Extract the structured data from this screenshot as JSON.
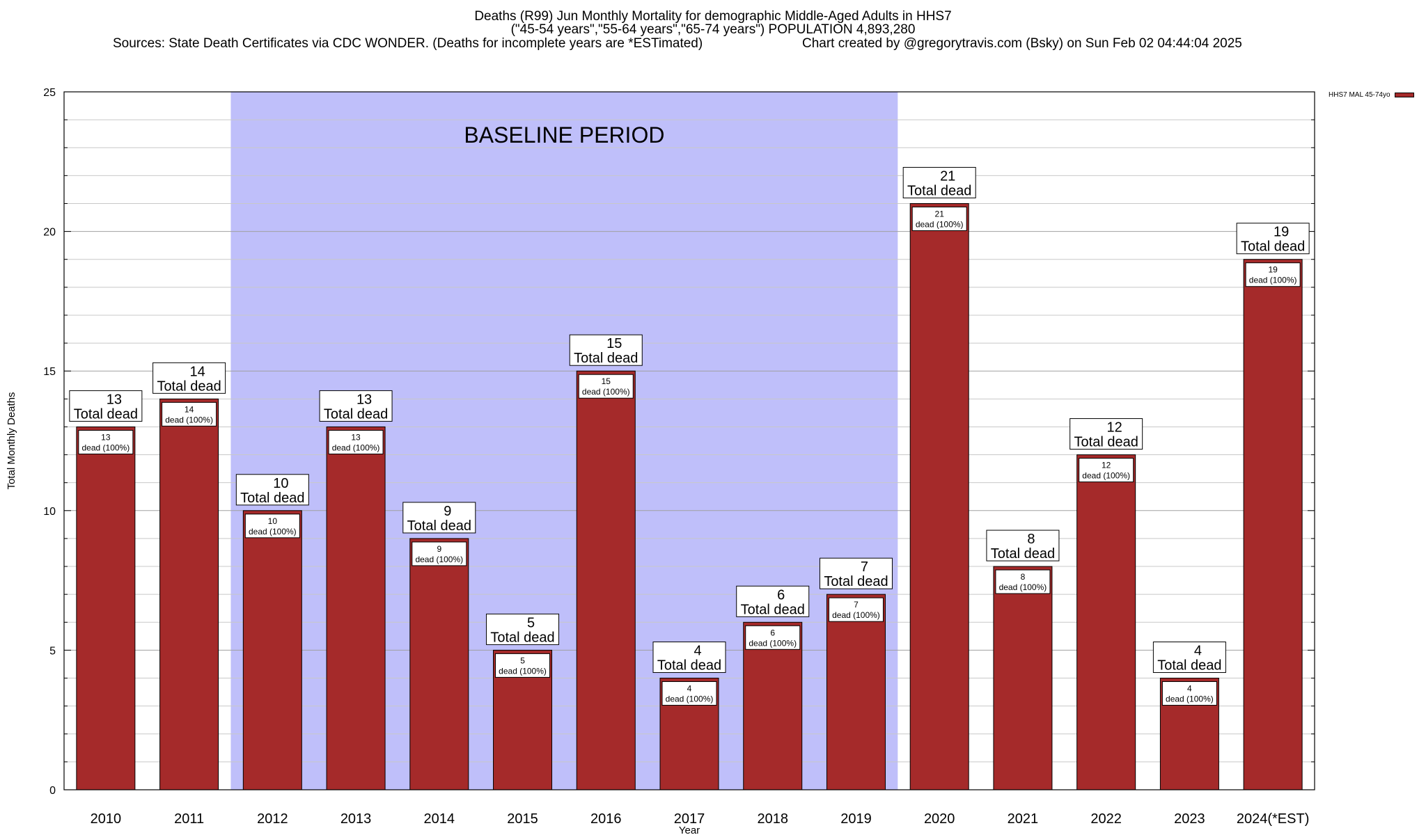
{
  "title": {
    "line1": "Deaths (R99) Jun Monthly Mortality for demographic Middle-Aged Adults in HHS7",
    "line2": "(\"45-54 years\",\"55-64 years\",\"65-74 years\") POPULATION 4,893,280",
    "sources": "Sources: State Death Certificates via CDC WONDER. (Deaths for incomplete years are *ESTimated)",
    "credit": "Chart created by @gregorytravis.com (Bsky) on Sun Feb 02 04:44:04 2025"
  },
  "legend": {
    "label": "HHS7 MAL 45-74yo"
  },
  "chart_data": {
    "type": "bar",
    "categories": [
      "2010",
      "2011",
      "2012",
      "2013",
      "2014",
      "2015",
      "2016",
      "2017",
      "2018",
      "2019",
      "2020",
      "2021",
      "2022",
      "2023",
      "2024(*EST)"
    ],
    "series": [
      {
        "name": "HHS7 MAL 45-74yo",
        "values": [
          13,
          14,
          10,
          13,
          9,
          5,
          15,
          4,
          6,
          7,
          21,
          8,
          12,
          4,
          19
        ]
      }
    ],
    "xlabel": "Year",
    "ylabel": "Total Monthly Deaths",
    "ylim": [
      0,
      25
    ],
    "yticks": [
      0,
      5,
      10,
      15,
      20,
      25
    ],
    "grid": true,
    "legend_position": "top-right",
    "bar_color": "#a52a2a",
    "baseline": {
      "label": "BASELINE PERIOD",
      "start": "2012",
      "end": "2019",
      "color": "#bfbffa"
    },
    "bar_label_top_suffix": "Total dead",
    "bar_label_inner_suffix": "dead (100%)"
  }
}
